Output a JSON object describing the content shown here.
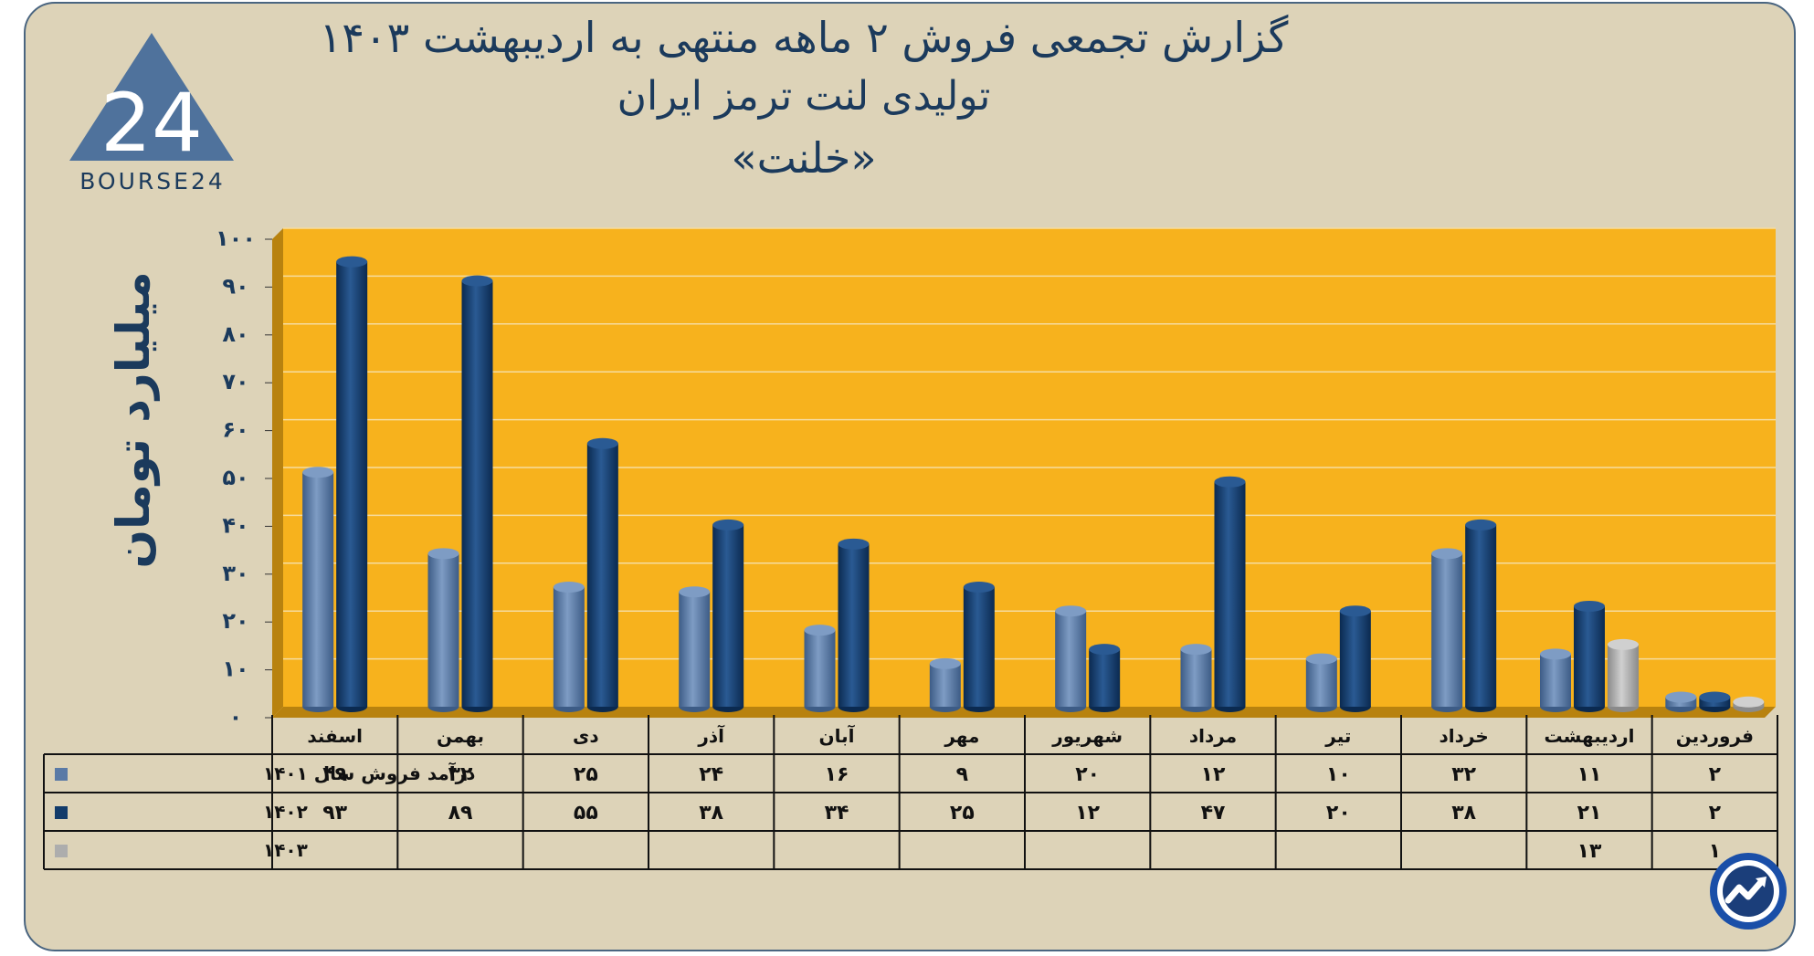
{
  "title_lines": [
    "گزارش تجمعی فروش ۲ ماهه منتهی به اردیبهشت ۱۴۰۳",
    "تولیدی لنت ترمز ایران",
    "«خلنت»"
  ],
  "logo": {
    "text": "BOURSE24",
    "mark": "24"
  },
  "badge_icon": "trend-chart-icon",
  "colors": {
    "plot_bg": "#f7b21d",
    "plot_side": "#b8820f",
    "series": [
      "#5a7aa6",
      "#123b6a",
      "#adadad"
    ],
    "text": "#1b3a5c"
  },
  "chart_data": {
    "type": "bar",
    "title": "گزارش تجمعی فروش ۲ ماهه منتهی به اردیبهشت ۱۴۰۳",
    "ylabel": "میلیارد تومان",
    "xlabel": "",
    "ylim": [
      0,
      100
    ],
    "yticks": [
      0,
      10,
      20,
      30,
      40,
      50,
      60,
      70,
      80,
      90,
      100
    ],
    "ytick_labels": [
      "۰",
      "۱۰",
      "۲۰",
      "۳۰",
      "۴۰",
      "۵۰",
      "۶۰",
      "۷۰",
      "۸۰",
      "۹۰",
      "۱۰۰"
    ],
    "grid": true,
    "categories": [
      "فروردین",
      "اردیبهشت",
      "خرداد",
      "تیر",
      "مرداد",
      "شهریور",
      "مهر",
      "آبان",
      "آذر",
      "دی",
      "بهمن",
      "اسفند"
    ],
    "series": [
      {
        "name": "درآمد فروش سال ۱۴۰۱",
        "values": [
          2,
          11,
          32,
          10,
          12,
          20,
          9,
          16,
          24,
          25,
          32,
          49
        ],
        "labels": [
          "۲",
          "۱۱",
          "۳۲",
          "۱۰",
          "۱۲",
          "۲۰",
          "۹",
          "۱۶",
          "۲۴",
          "۲۵",
          "۳۲",
          "۴۹"
        ]
      },
      {
        "name": "۱۴۰۲",
        "values": [
          2,
          21,
          38,
          20,
          47,
          12,
          25,
          34,
          38,
          55,
          89,
          93
        ],
        "labels": [
          "۲",
          "۲۱",
          "۳۸",
          "۲۰",
          "۴۷",
          "۱۲",
          "۲۵",
          "۳۴",
          "۳۸",
          "۵۵",
          "۸۹",
          "۹۳"
        ]
      },
      {
        "name": "۱۴۰۳",
        "values": [
          1,
          13,
          null,
          null,
          null,
          null,
          null,
          null,
          null,
          null,
          null,
          null
        ],
        "labels": [
          "۱",
          "۱۳",
          "",
          "",
          "",
          "",
          "",
          "",
          "",
          "",
          "",
          ""
        ]
      }
    ],
    "legend": "data-table"
  }
}
